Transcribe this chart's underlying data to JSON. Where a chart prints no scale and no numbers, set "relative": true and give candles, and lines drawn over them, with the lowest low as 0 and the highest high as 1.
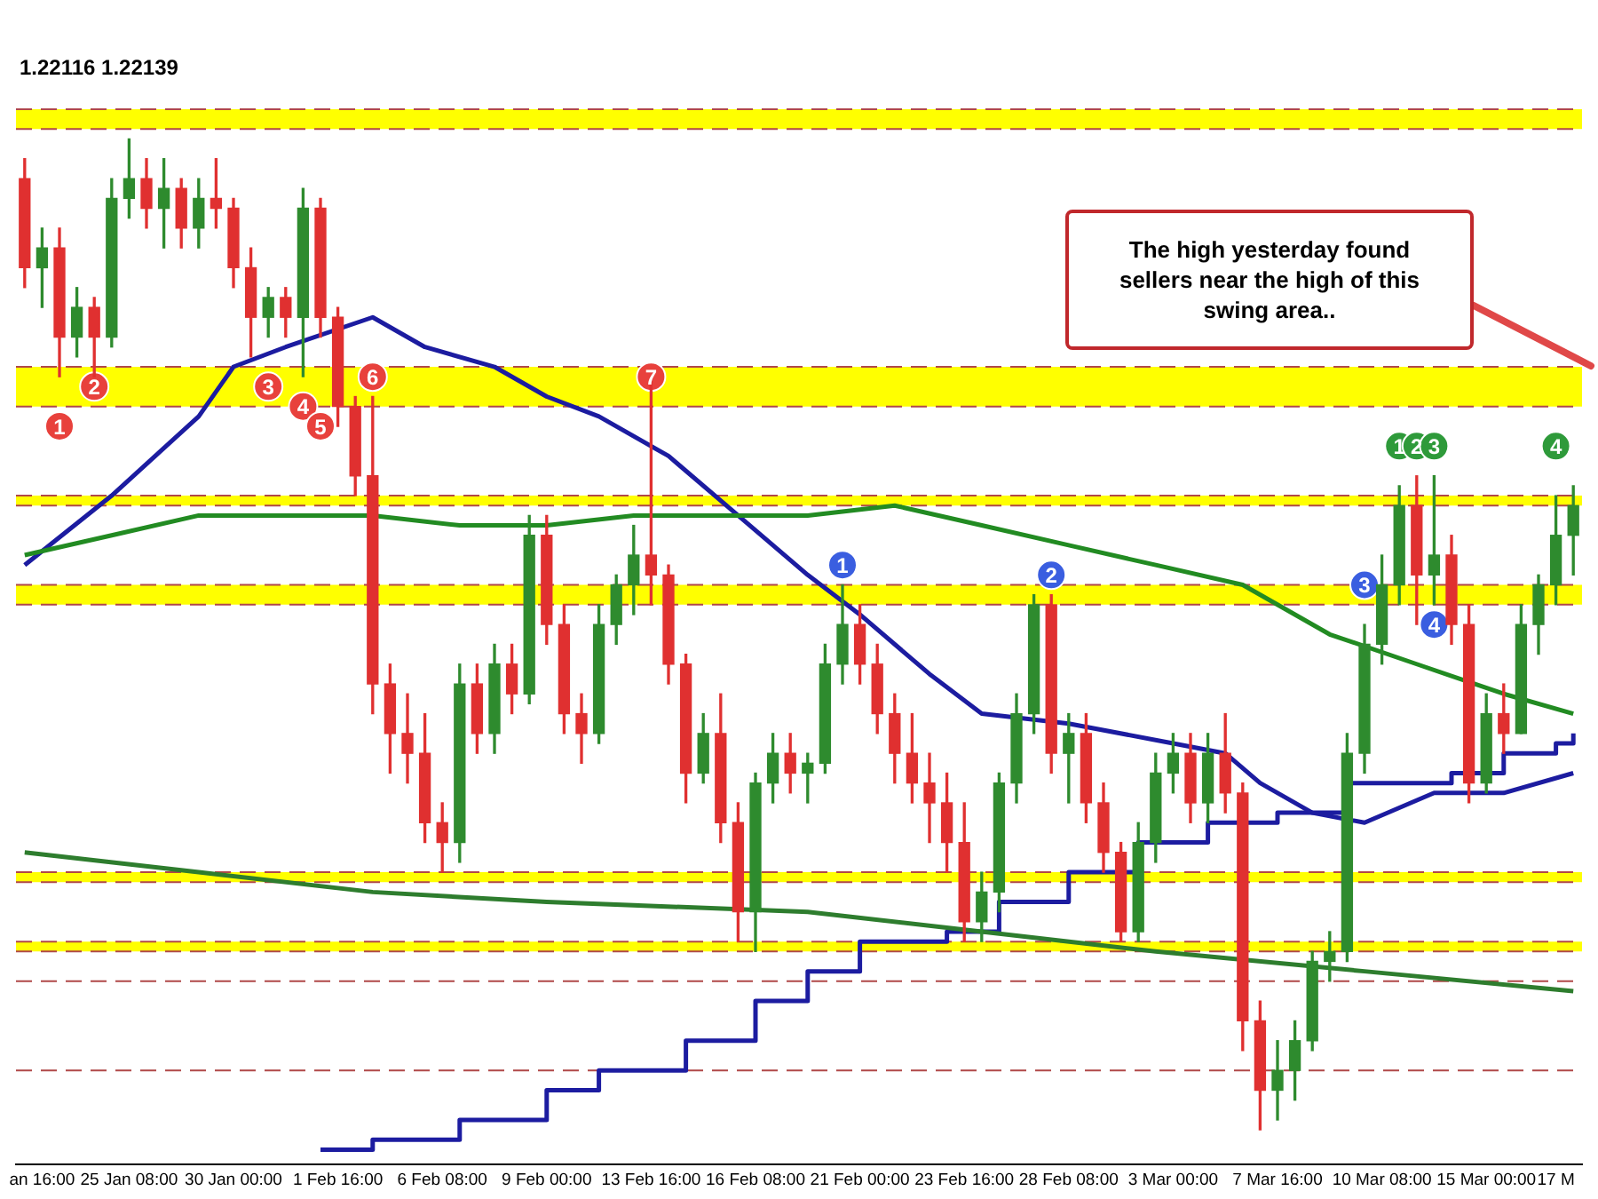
{
  "chart_data": {
    "type": "candlestick",
    "relative": true,
    "annotations": [
      "1.22116 1.22139",
      "The high yesterday found sellers near the high of this swing area..",
      "1",
      "2",
      "3",
      "4",
      "5",
      "6",
      "7",
      "1",
      "2",
      "3",
      "4",
      "1",
      "2",
      "3",
      "4"
    ],
    "categories": [
      null,
      "an 16:00",
      null,
      null,
      null,
      null,
      "25 Jan 08:00",
      null,
      null,
      null,
      null,
      null,
      "30 Jan 00:00",
      null,
      null,
      null,
      null,
      null,
      "1 Feb 16:00",
      null,
      null,
      null,
      null,
      null,
      "6 Feb 08:00",
      null,
      null,
      null,
      null,
      null,
      "9 Feb 00:00",
      null,
      null,
      null,
      null,
      null,
      "13 Feb 16:00",
      null,
      null,
      null,
      null,
      null,
      "16 Feb 08:00",
      null,
      null,
      null,
      null,
      null,
      "21 Feb 00:00",
      null,
      null,
      null,
      null,
      null,
      "23 Feb 16:00",
      null,
      null,
      null,
      null,
      null,
      "28 Feb 08:00",
      null,
      null,
      null,
      null,
      null,
      "3 Mar 00:00",
      null,
      null,
      null,
      null,
      null,
      "7 Mar 16:00",
      null,
      null,
      null,
      null,
      null,
      "10 Mar 08:00",
      null,
      null,
      null,
      null,
      null,
      "15 Mar 00:00",
      null,
      null,
      null,
      "17 M",
      null
    ],
    "ohlc": [
      [
        0.96,
        0.98,
        0.85,
        0.87
      ],
      [
        0.87,
        0.91,
        0.83,
        0.89
      ],
      [
        0.89,
        0.91,
        0.76,
        0.8
      ],
      [
        0.8,
        0.85,
        0.78,
        0.83
      ],
      [
        0.83,
        0.84,
        0.76,
        0.8
      ],
      [
        0.8,
        0.96,
        0.79,
        0.94
      ],
      [
        0.94,
        1,
        0.92,
        0.96
      ],
      [
        0.96,
        0.98,
        0.91,
        0.93
      ],
      [
        0.93,
        0.98,
        0.89,
        0.95
      ],
      [
        0.95,
        0.96,
        0.89,
        0.91
      ],
      [
        0.91,
        0.96,
        0.89,
        0.94
      ],
      [
        0.94,
        0.98,
        0.91,
        0.93
      ],
      [
        0.93,
        0.94,
        0.85,
        0.87
      ],
      [
        0.87,
        0.89,
        0.78,
        0.82
      ],
      [
        0.82,
        0.85,
        0.8,
        0.84
      ],
      [
        0.84,
        0.85,
        0.8,
        0.82
      ],
      [
        0.82,
        0.95,
        0.76,
        0.93
      ],
      [
        0.93,
        0.94,
        0.8,
        0.82
      ],
      [
        0.82,
        0.83,
        0.71,
        0.73
      ],
      [
        0.73,
        0.74,
        0.64,
        0.66
      ],
      [
        0.66,
        0.74,
        0.42,
        0.45
      ],
      [
        0.45,
        0.47,
        0.36,
        0.4
      ],
      [
        0.4,
        0.44,
        0.35,
        0.38
      ],
      [
        0.38,
        0.42,
        0.29,
        0.31
      ],
      [
        0.31,
        0.33,
        0.26,
        0.29
      ],
      [
        0.29,
        0.47,
        0.27,
        0.45
      ],
      [
        0.45,
        0.47,
        0.38,
        0.4
      ],
      [
        0.4,
        0.49,
        0.38,
        0.47
      ],
      [
        0.47,
        0.49,
        0.42,
        0.44
      ],
      [
        0.44,
        0.62,
        0.43,
        0.6
      ],
      [
        0.6,
        0.62,
        0.49,
        0.51
      ],
      [
        0.51,
        0.53,
        0.4,
        0.42
      ],
      [
        0.42,
        0.44,
        0.37,
        0.4
      ],
      [
        0.4,
        0.53,
        0.39,
        0.51
      ],
      [
        0.51,
        0.56,
        0.49,
        0.55
      ],
      [
        0.55,
        0.61,
        0.52,
        0.58
      ],
      [
        0.58,
        0.76,
        0.53,
        0.56
      ],
      [
        0.56,
        0.57,
        0.45,
        0.47
      ],
      [
        0.47,
        0.48,
        0.33,
        0.36
      ],
      [
        0.36,
        0.42,
        0.35,
        0.4
      ],
      [
        0.4,
        0.44,
        0.29,
        0.31
      ],
      [
        0.31,
        0.33,
        0.19,
        0.22
      ],
      [
        0.22,
        0.36,
        0.18,
        0.35
      ],
      [
        0.35,
        0.4,
        0.33,
        0.38
      ],
      [
        0.38,
        0.4,
        0.34,
        0.36
      ],
      [
        0.36,
        0.38,
        0.33,
        0.37
      ],
      [
        0.37,
        0.49,
        0.36,
        0.47
      ],
      [
        0.47,
        0.55,
        0.45,
        0.51
      ],
      [
        0.51,
        0.53,
        0.45,
        0.47
      ],
      [
        0.47,
        0.49,
        0.4,
        0.42
      ],
      [
        0.42,
        0.44,
        0.35,
        0.38
      ],
      [
        0.38,
        0.42,
        0.33,
        0.35
      ],
      [
        0.35,
        0.38,
        0.29,
        0.33
      ],
      [
        0.33,
        0.36,
        0.26,
        0.29
      ],
      [
        0.29,
        0.33,
        0.19,
        0.21
      ],
      [
        0.21,
        0.26,
        0.19,
        0.24
      ],
      [
        0.24,
        0.36,
        0.22,
        0.35
      ],
      [
        0.35,
        0.44,
        0.33,
        0.42
      ],
      [
        0.42,
        0.54,
        0.4,
        0.53
      ],
      [
        0.53,
        0.54,
        0.36,
        0.38
      ],
      [
        0.38,
        0.42,
        0.33,
        0.4
      ],
      [
        0.4,
        0.42,
        0.31,
        0.33
      ],
      [
        0.33,
        0.35,
        0.26,
        0.28
      ],
      [
        0.28,
        0.29,
        0.19,
        0.2
      ],
      [
        0.2,
        0.31,
        0.19,
        0.29
      ],
      [
        0.29,
        0.38,
        0.27,
        0.36
      ],
      [
        0.36,
        0.4,
        0.34,
        0.38
      ],
      [
        0.38,
        0.4,
        0.31,
        0.33
      ],
      [
        0.33,
        0.4,
        0.31,
        0.38
      ],
      [
        0.38,
        0.42,
        0.32,
        0.34
      ],
      [
        0.34,
        0.35,
        0.08,
        0.11
      ],
      [
        0.11,
        0.13,
        0,
        0.04
      ],
      [
        0.04,
        0.09,
        0.01,
        0.06
      ],
      [
        0.06,
        0.11,
        0.03,
        0.09
      ],
      [
        0.09,
        0.18,
        0.08,
        0.17
      ],
      [
        0.17,
        0.2,
        0.15,
        0.18
      ],
      [
        0.18,
        0.4,
        0.17,
        0.38
      ],
      [
        0.38,
        0.51,
        0.36,
        0.49
      ],
      [
        0.49,
        0.58,
        0.47,
        0.55
      ],
      [
        0.55,
        0.65,
        0.53,
        0.63
      ],
      [
        0.63,
        0.66,
        0.51,
        0.56
      ],
      [
        0.56,
        0.66,
        0.53,
        0.58
      ],
      [
        0.58,
        0.6,
        0.49,
        0.51
      ],
      [
        0.51,
        0.53,
        0.33,
        0.35
      ],
      [
        0.35,
        0.44,
        0.34,
        0.42
      ],
      [
        0.42,
        0.45,
        0.38,
        0.4
      ],
      [
        0.4,
        0.53,
        0.4,
        0.51
      ],
      [
        0.51,
        0.56,
        0.48,
        0.55
      ],
      [
        0.55,
        0.64,
        0.53,
        0.6
      ],
      [
        0.6,
        0.65,
        0.56,
        0.63
      ]
    ],
    "colors": [
      "#e03030",
      "#2e8b2e",
      "#e03030",
      "#2e8b2e",
      "#e03030",
      "#2e8b2e",
      "#2e8b2e",
      "#e03030",
      "#2e8b2e",
      "#e03030",
      "#2e8b2e",
      "#e03030",
      "#e03030",
      "#e03030",
      "#2e8b2e",
      "#e03030",
      "#2e8b2e",
      "#e03030",
      "#e03030",
      "#e03030",
      "#e03030",
      "#e03030",
      "#e03030",
      "#e03030",
      "#e03030",
      "#2e8b2e",
      "#e03030",
      "#2e8b2e",
      "#e03030",
      "#2e8b2e",
      "#e03030",
      "#e03030",
      "#e03030",
      "#2e8b2e",
      "#2e8b2e",
      "#2e8b2e",
      "#e03030",
      "#e03030",
      "#e03030",
      "#2e8b2e",
      "#e03030",
      "#e03030",
      "#2e8b2e",
      "#2e8b2e",
      "#e03030",
      "#2e8b2e",
      "#2e8b2e",
      "#2e8b2e",
      "#e03030",
      "#e03030",
      "#e03030",
      "#e03030",
      "#e03030",
      "#e03030",
      "#e03030",
      "#2e8b2e",
      "#2e8b2e",
      "#2e8b2e",
      "#2e8b2e",
      "#e03030",
      "#2e8b2e",
      "#e03030",
      "#e03030",
      "#e03030",
      "#2e8b2e",
      "#2e8b2e",
      "#2e8b2e",
      "#e03030",
      "#2e8b2e",
      "#e03030",
      "#e03030",
      "#e03030",
      "#2e8b2e",
      "#2e8b2e",
      "#2e8b2e",
      "#2e8b2e",
      "#2e8b2e",
      "#2e8b2e",
      "#2e8b2e",
      "#2e8b2e",
      "#e03030",
      "#2e8b2e",
      "#e03030",
      "#e03030",
      "#2e8b2e",
      "#e03030",
      "#2e8b2e",
      "#2e8b2e",
      "#2e8b2e",
      "#2e8b2e"
    ],
    "series": [
      {
        "type": "line",
        "color": "#228b22",
        "values": [
          0.58,
          null,
          null,
          null,
          null,
          0.6,
          null,
          null,
          null,
          null,
          0.62,
          null,
          null,
          null,
          null,
          0.62,
          null,
          null,
          null,
          null,
          0.62,
          null,
          null,
          null,
          null,
          0.61,
          null,
          null,
          null,
          null,
          0.61,
          null,
          null,
          null,
          null,
          0.62,
          null,
          null,
          null,
          null,
          0.62,
          null,
          null,
          null,
          null,
          0.62,
          null,
          null,
          null,
          null,
          0.63,
          null,
          null,
          null,
          null,
          0.61,
          null,
          null,
          null,
          null,
          0.59,
          null,
          null,
          null,
          null,
          0.57,
          null,
          null,
          null,
          null,
          0.55,
          null,
          null,
          null,
          null,
          0.5,
          null,
          null,
          null,
          null,
          0.47,
          null,
          null,
          null,
          null,
          0.44,
          null,
          null,
          null,
          0.42
        ]
      },
      {
        "type": "line",
        "color": "#1c1ca0",
        "values": [
          0.57,
          null,
          null,
          null,
          null,
          0.64,
          null,
          null,
          null,
          null,
          0.72,
          null,
          0.77,
          null,
          null,
          0.79,
          null,
          null,
          null,
          null,
          0.82,
          null,
          null,
          0.79,
          null,
          null,
          null,
          0.77,
          null,
          null,
          0.74,
          null,
          null,
          0.72,
          null,
          null,
          null,
          0.68,
          null,
          null,
          null,
          0.62,
          null,
          null,
          null,
          0.56,
          null,
          null,
          0.52,
          null,
          null,
          null,
          0.46,
          null,
          null,
          0.42,
          null,
          null,
          null,
          null,
          0.41,
          null,
          null,
          null,
          null,
          null,
          0.39,
          null,
          null,
          0.38,
          null,
          0.35,
          null,
          null,
          0.32,
          null,
          null,
          0.31,
          null,
          null,
          null,
          0.34,
          null,
          null,
          null,
          0.34,
          null,
          null,
          null,
          0.36
        ]
      },
      {
        "type": "line",
        "color": "#2e7d2e",
        "values": [
          0.28,
          null,
          null,
          null,
          null,
          null,
          null,
          null,
          null,
          null,
          0.26,
          null,
          null,
          null,
          null,
          null,
          null,
          null,
          null,
          null,
          0.24,
          null,
          null,
          null,
          null,
          null,
          null,
          null,
          null,
          null,
          0.23,
          null,
          null,
          null,
          null,
          null,
          null,
          null,
          null,
          null,
          null,
          null,
          null,
          null,
          null,
          0.22,
          null,
          null,
          null,
          null,
          null,
          null,
          null,
          null,
          null,
          0.2,
          null,
          null,
          null,
          null,
          null,
          null,
          null,
          null,
          null,
          0.18,
          null,
          null,
          null,
          null,
          null,
          null,
          null,
          null,
          null,
          null,
          null,
          0.16,
          null,
          null,
          null,
          null,
          null,
          null,
          null,
          null,
          null,
          null,
          null,
          0.14
        ]
      },
      {
        "type": "step",
        "color": "#1c1ca0",
        "values": [
          null,
          null,
          null,
          null,
          null,
          null,
          null,
          null,
          null,
          null,
          null,
          null,
          null,
          null,
          null,
          null,
          null,
          -0.02,
          null,
          null,
          -0.01,
          null,
          null,
          null,
          null,
          0.01,
          null,
          null,
          null,
          null,
          0.04,
          null,
          null,
          0.06,
          null,
          null,
          null,
          null,
          0.09,
          null,
          null,
          null,
          0.13,
          null,
          null,
          0.16,
          null,
          null,
          0.19,
          null,
          null,
          null,
          null,
          0.2,
          null,
          null,
          0.23,
          null,
          null,
          null,
          0.26,
          null,
          null,
          null,
          0.29,
          null,
          null,
          null,
          0.31,
          null,
          null,
          null,
          0.32,
          null,
          null,
          null,
          0.35,
          null,
          null,
          0.35,
          null,
          null,
          0.36,
          null,
          null,
          0.38,
          null,
          null,
          0.39,
          0.4
        ]
      },
      {
        "type": "scatter",
        "marker": "circle",
        "color": "#e8413c",
        "values": [
          null,
          null,
          0.71,
          null,
          0.75,
          null,
          null,
          null,
          null,
          null,
          null,
          null,
          null,
          null,
          0.75,
          null,
          0.73,
          0.71,
          null,
          null,
          0.76,
          null,
          null,
          null,
          null,
          null,
          null,
          null,
          null,
          null,
          null,
          null,
          null,
          null,
          null,
          null,
          0.76,
          null,
          null,
          null,
          null,
          null,
          null,
          null,
          null,
          null,
          null,
          null,
          null,
          null,
          null,
          null,
          null,
          null,
          null,
          null,
          null,
          null,
          null,
          null,
          null,
          null,
          null,
          null,
          null,
          null,
          null,
          null,
          null,
          null,
          null,
          null,
          null,
          null,
          null,
          null,
          null,
          null,
          null,
          null,
          null,
          null,
          null,
          null,
          null,
          null,
          null,
          null,
          null,
          null
        ]
      },
      {
        "type": "scatter",
        "marker": "circle",
        "color": "#3a5ee0",
        "values": [
          null,
          null,
          null,
          null,
          null,
          null,
          null,
          null,
          null,
          null,
          null,
          null,
          null,
          null,
          null,
          null,
          null,
          null,
          null,
          null,
          null,
          null,
          null,
          null,
          null,
          null,
          null,
          null,
          null,
          null,
          null,
          null,
          null,
          null,
          null,
          null,
          null,
          null,
          null,
          null,
          null,
          null,
          null,
          null,
          null,
          null,
          null,
          0.57,
          null,
          null,
          null,
          null,
          null,
          null,
          null,
          null,
          null,
          null,
          null,
          0.56,
          null,
          null,
          null,
          null,
          null,
          null,
          null,
          null,
          null,
          null,
          null,
          null,
          null,
          null,
          null,
          null,
          null,
          0.55,
          null,
          null,
          null,
          0.51,
          null,
          null,
          null,
          null,
          null,
          null,
          null,
          null
        ]
      },
      {
        "type": "scatter",
        "marker": "circle",
        "color": "#2e9a3a",
        "values": [
          null,
          null,
          null,
          null,
          null,
          null,
          null,
          null,
          null,
          null,
          null,
          null,
          null,
          null,
          null,
          null,
          null,
          null,
          null,
          null,
          null,
          null,
          null,
          null,
          null,
          null,
          null,
          null,
          null,
          null,
          null,
          null,
          null,
          null,
          null,
          null,
          null,
          null,
          null,
          null,
          null,
          null,
          null,
          null,
          null,
          null,
          null,
          null,
          null,
          null,
          null,
          null,
          null,
          null,
          null,
          null,
          null,
          null,
          null,
          null,
          null,
          null,
          null,
          null,
          null,
          null,
          null,
          null,
          null,
          null,
          null,
          null,
          null,
          null,
          null,
          null,
          null,
          null,
          null,
          0.69,
          0.69,
          0.69,
          null,
          null,
          null,
          null,
          null,
          null,
          0.69,
          null
        ]
      }
    ],
    "bands": [
      {
        "axis": "y",
        "from": 1.01,
        "to": 1.03,
        "color": "#ffff00"
      },
      {
        "axis": "y",
        "from": 0.73,
        "to": 0.77,
        "color": "#ffff00"
      },
      {
        "axis": "y",
        "from": 0.63,
        "to": 0.64,
        "color": "#ffff00"
      },
      {
        "axis": "y",
        "from": 0.53,
        "to": 0.55,
        "color": "#ffff00"
      },
      {
        "axis": "y",
        "from": 0.25,
        "to": 0.26,
        "color": "#ffff00"
      },
      {
        "axis": "y",
        "from": 0.18,
        "to": 0.19,
        "color": "#ffff00"
      }
    ],
    "ref_lines": [
      {
        "axis": "y",
        "value": 1.03,
        "color": "#b04848",
        "line_style": "dashed"
      },
      {
        "axis": "y",
        "value": 1.01,
        "color": "#b04848",
        "line_style": "dashed"
      },
      {
        "axis": "y",
        "value": 0.77,
        "color": "#b04848",
        "line_style": "dashed"
      },
      {
        "axis": "y",
        "value": 0.73,
        "color": "#b04848",
        "line_style": "dashed"
      },
      {
        "axis": "y",
        "value": 0.64,
        "color": "#b04848",
        "line_style": "dashed"
      },
      {
        "axis": "y",
        "value": 0.63,
        "color": "#b04848",
        "line_style": "dashed"
      },
      {
        "axis": "y",
        "value": 0.55,
        "color": "#b04848",
        "line_style": "dashed"
      },
      {
        "axis": "y",
        "value": 0.53,
        "color": "#b04848",
        "line_style": "dashed"
      },
      {
        "axis": "y",
        "value": 0.26,
        "color": "#b04848",
        "line_style": "dashed"
      },
      {
        "axis": "y",
        "value": 0.25,
        "color": "#b04848",
        "line_style": "dashed"
      },
      {
        "axis": "y",
        "value": 0.19,
        "color": "#b04848",
        "line_style": "dashed"
      },
      {
        "axis": "y",
        "value": 0.18,
        "color": "#b04848",
        "line_style": "dashed"
      },
      {
        "axis": "y",
        "value": 0.15,
        "color": "#b04848",
        "line_style": "dashed"
      },
      {
        "axis": "y",
        "value": 0.06,
        "color": "#b04848",
        "line_style": "dashed"
      }
    ]
  }
}
